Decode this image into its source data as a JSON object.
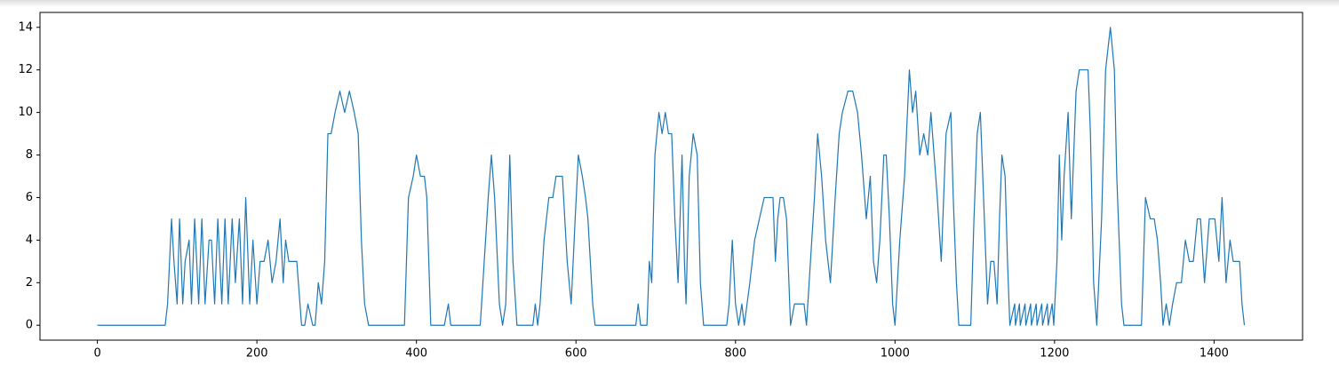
{
  "chart_data": {
    "type": "line",
    "color": "#1f77b4",
    "x": [
      0,
      85,
      88,
      93,
      96,
      100,
      103,
      107,
      110,
      115,
      118,
      122,
      127,
      131,
      135,
      140,
      143,
      147,
      151,
      156,
      160,
      164,
      169,
      173,
      178,
      182,
      186,
      191,
      195,
      200,
      204,
      209,
      214,
      219,
      224,
      229,
      233,
      236,
      240,
      245,
      250,
      256,
      260,
      264,
      270,
      273,
      277,
      281,
      285,
      289,
      293,
      298,
      304,
      310,
      316,
      322,
      327,
      331,
      335,
      340,
      385,
      390,
      396,
      400,
      405,
      410,
      413,
      418,
      435,
      440,
      443,
      480,
      485,
      490,
      494,
      498,
      504,
      508,
      512,
      517,
      521,
      526,
      546,
      549,
      552,
      555,
      560,
      566,
      571,
      575,
      579,
      583,
      589,
      594,
      599,
      603,
      608,
      612,
      615,
      621,
      624,
      675,
      678,
      681,
      689,
      692,
      695,
      699,
      704,
      708,
      712,
      716,
      720,
      724,
      728,
      733,
      736,
      738,
      742,
      747,
      752,
      756,
      760,
      789,
      792,
      796,
      800,
      804,
      808,
      811,
      818,
      824,
      830,
      836,
      842,
      847,
      850,
      853,
      856,
      860,
      864,
      869,
      874,
      880,
      886,
      889,
      894,
      899,
      903,
      908,
      913,
      919,
      925,
      930,
      934,
      941,
      947,
      953,
      958,
      964,
      969,
      973,
      977,
      981,
      986,
      989,
      993,
      997,
      1000,
      1006,
      1012,
      1018,
      1022,
      1026,
      1031,
      1036,
      1041,
      1045,
      1049,
      1053,
      1058,
      1064,
      1070,
      1073,
      1077,
      1080,
      1095,
      1099,
      1103,
      1107,
      1110,
      1116,
      1120,
      1124,
      1128,
      1131,
      1134,
      1138,
      1141,
      1144,
      1150,
      1151,
      1156,
      1157,
      1163,
      1164,
      1170,
      1171,
      1177,
      1178,
      1184,
      1185,
      1191,
      1192,
      1197,
      1199,
      1203,
      1206,
      1209,
      1212,
      1217,
      1221,
      1227,
      1231,
      1237,
      1242,
      1245,
      1249,
      1253,
      1259,
      1264,
      1270,
      1275,
      1278,
      1284,
      1287,
      1309,
      1314,
      1320,
      1325,
      1329,
      1333,
      1336,
      1340,
      1344,
      1348,
      1353,
      1359,
      1364,
      1369,
      1374,
      1379,
      1383,
      1388,
      1394,
      1401,
      1406,
      1410,
      1415,
      1420,
      1424,
      1428,
      1432,
      1435,
      1438
    ],
    "values": [
      0,
      0,
      1,
      5,
      3,
      1,
      5,
      1,
      3,
      4,
      1,
      5,
      1,
      5,
      1,
      4,
      4,
      1,
      5,
      1,
      5,
      1,
      5,
      2,
      5,
      1,
      6,
      1,
      4,
      1,
      3,
      3,
      4,
      2,
      3,
      5,
      2,
      4,
      3,
      3,
      3,
      0,
      0,
      1,
      0,
      0,
      2,
      1,
      3,
      9,
      9,
      10,
      11,
      10,
      11,
      10,
      9,
      4,
      1,
      0,
      0,
      6,
      7,
      8,
      7,
      7,
      6,
      0,
      0,
      1,
      0,
      0,
      3,
      6,
      8,
      6,
      1,
      0,
      1,
      8,
      3,
      0,
      0,
      1,
      0,
      1,
      4,
      6,
      6,
      7,
      7,
      7,
      3,
      1,
      5,
      8,
      7,
      6,
      5,
      1,
      0,
      0,
      1,
      0,
      0,
      3,
      2,
      8,
      10,
      9,
      10,
      9,
      9,
      5,
      2,
      8,
      3,
      1,
      7,
      9,
      8,
      2,
      0,
      0,
      1,
      4,
      1,
      0,
      1,
      0,
      2,
      4,
      5,
      6,
      6,
      6,
      3,
      5,
      6,
      6,
      5,
      0,
      1,
      1,
      1,
      0,
      3,
      6,
      9,
      7,
      4,
      2,
      6,
      9,
      10,
      11,
      11,
      10,
      8,
      5,
      7,
      3,
      2,
      4,
      8,
      8,
      5,
      1,
      0,
      4,
      7,
      12,
      10,
      11,
      8,
      9,
      8,
      10,
      8,
      6,
      3,
      9,
      10,
      6,
      2,
      0,
      0,
      5,
      9,
      10,
      7,
      1,
      3,
      3,
      1,
      5,
      8,
      7,
      3,
      0,
      1,
      0,
      1,
      0,
      1,
      0,
      1,
      0,
      1,
      0,
      1,
      0,
      1,
      0,
      1,
      0,
      3,
      8,
      4,
      7,
      10,
      5,
      11,
      12,
      12,
      12,
      9,
      2,
      0,
      5,
      12,
      14,
      12,
      7,
      1,
      0,
      0,
      6,
      5,
      5,
      4,
      2,
      0,
      1,
      0,
      1,
      2,
      2,
      4,
      3,
      3,
      5,
      5,
      2,
      5,
      5,
      3,
      6,
      2,
      4,
      3,
      3,
      3,
      1,
      0
    ],
    "xlim": [
      -71.95,
      1510.95
    ],
    "ylim": [
      -0.7,
      14.7
    ],
    "xticks": [
      0,
      200,
      400,
      600,
      800,
      1000,
      1200,
      1400
    ],
    "yticks": [
      0,
      2,
      4,
      6,
      8,
      10,
      12,
      14
    ]
  }
}
